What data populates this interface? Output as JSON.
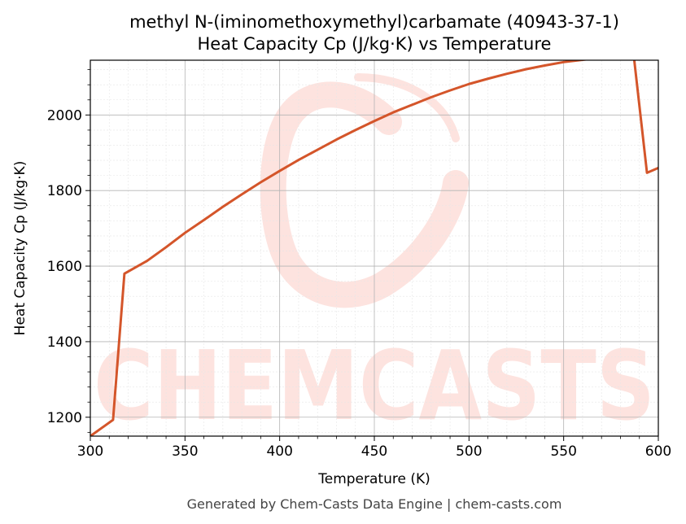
{
  "chart_data": {
    "type": "line",
    "title_line1": "methyl N-(iminomethoxymethyl)carbamate (40943-37-1)",
    "title_line2": "Heat Capacity Cp (J/kg·K) vs Temperature",
    "xlabel": "Temperature (K)",
    "ylabel": "Heat Capacity Cp (J/kg·K)",
    "xlim": [
      300,
      600
    ],
    "ylim": [
      1150,
      2145
    ],
    "x_ticks": [
      300,
      350,
      400,
      450,
      500,
      550,
      600
    ],
    "y_ticks": [
      1200,
      1400,
      1600,
      1800,
      2000
    ],
    "grid": true,
    "line_color": "#d4552a",
    "series": [
      {
        "x": [
          300,
          312,
          318,
          330,
          340,
          350,
          360,
          370,
          380,
          390,
          400,
          410,
          420,
          430,
          440,
          450,
          460,
          470,
          480,
          490,
          500,
          510,
          520,
          530,
          540,
          550,
          560,
          570,
          580,
          587,
          594,
          600
        ],
        "values": [
          1150,
          1193,
          1580,
          1614,
          1650,
          1688,
          1722,
          1757,
          1790,
          1822,
          1852,
          1881,
          1908,
          1935,
          1960,
          1984,
          2007,
          2027,
          2047,
          2065,
          2082,
          2096,
          2109,
          2121,
          2131,
          2140,
          2146,
          2152,
          2156,
          2158,
          1847,
          1860
        ]
      }
    ]
  },
  "watermark": "CHEMCASTS",
  "footer": "Generated by Chem-Casts Data Engine | chem-casts.com"
}
